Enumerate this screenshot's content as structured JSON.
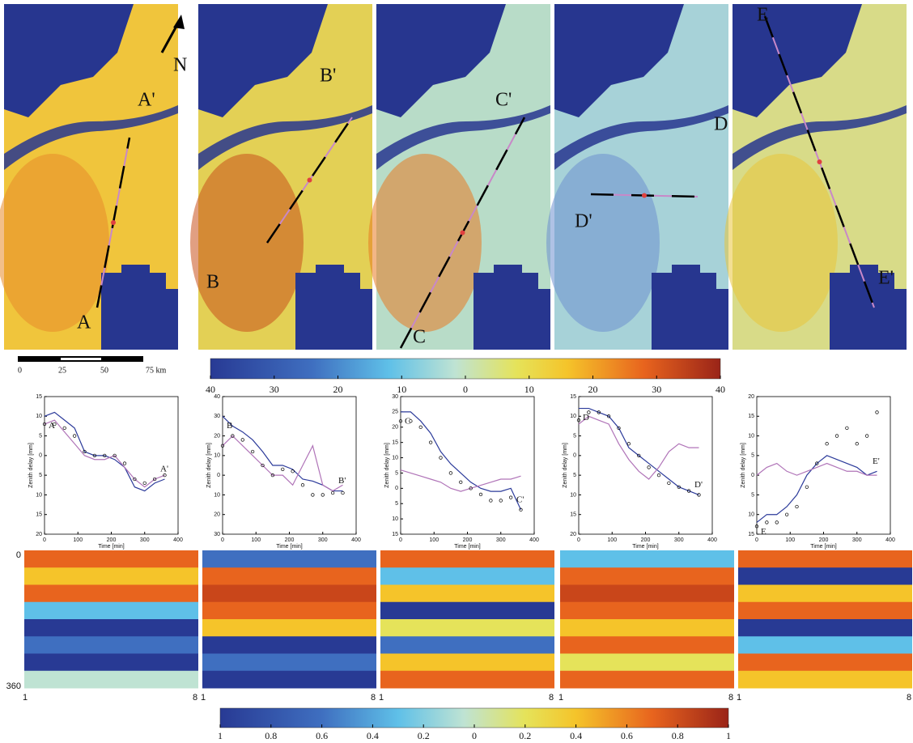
{
  "map_panels": [
    {
      "start": "A",
      "end": "A'"
    },
    {
      "start": "B",
      "end": "B'"
    },
    {
      "start": "C",
      "end": "C'"
    },
    {
      "start": "D",
      "end": "D'"
    },
    {
      "start": "E",
      "end": "E'"
    }
  ],
  "north": "N",
  "scale_bar": {
    "labels": [
      "0",
      "25",
      "50",
      "75 km"
    ]
  },
  "colorbars": [
    {
      "lim": [
        -40,
        40
      ],
      "ticks": [
        {
          "value": -40,
          "label": "40"
        },
        {
          "value": -30,
          "label": "30"
        },
        {
          "value": -20,
          "label": "20"
        },
        {
          "value": -10,
          "label": "10"
        },
        0,
        10,
        20,
        30,
        40
      ]
    },
    {
      "lim": [
        -1,
        1
      ],
      "ticks": [
        {
          "value": -1,
          "label": "1"
        },
        {
          "value": -0.8,
          "label": "0.8"
        },
        {
          "value": -0.6,
          "label": "0.6"
        },
        {
          "value": -0.4,
          "label": "0.4"
        },
        {
          "value": -0.2,
          "label": "0.2"
        },
        0,
        0.2,
        0.4,
        0.6,
        0.8,
        1
      ]
    }
  ],
  "chart_data": [
    {
      "type": "line",
      "xlabel": "Time [min]",
      "ylabel": "Zenith delay [mm]",
      "start_label": "A",
      "end_label": "A'",
      "x": [
        0,
        30,
        60,
        90,
        120,
        150,
        180,
        210,
        240,
        270,
        300,
        330,
        360
      ],
      "xlim": [
        0,
        400
      ],
      "xticks": [
        0,
        100,
        200,
        300,
        400
      ],
      "ylim": [
        -20,
        15
      ],
      "yticks": [
        15,
        10,
        5,
        0,
        {
          "value": -5,
          "label": "5"
        },
        {
          "value": -10,
          "label": "10"
        },
        {
          "value": -15,
          "label": "15"
        },
        {
          "value": -20,
          "label": "20"
        }
      ],
      "series": [
        {
          "color": "#2b3a9a",
          "values": [
            10,
            11,
            9,
            7,
            1,
            0,
            0,
            -1,
            -3,
            -8,
            -9,
            -7,
            -6
          ]
        },
        {
          "color": "#b074b8",
          "values": [
            8,
            9,
            6,
            3,
            0,
            -1,
            -1,
            0,
            -3,
            -6,
            -8,
            -6,
            -5
          ]
        },
        {
          "color": "#000000",
          "values": [
            8,
            8,
            7,
            5,
            1,
            0,
            0,
            0,
            -2,
            -6,
            -7,
            -6,
            -5
          ]
        }
      ]
    },
    {
      "type": "line",
      "xlabel": "Time [min]",
      "ylabel": "Zenith delay [mm]",
      "start_label": "B",
      "end_label": "B'",
      "x": [
        0,
        30,
        60,
        90,
        120,
        150,
        180,
        210,
        240,
        270,
        300,
        330,
        360
      ],
      "xlim": [
        0,
        400
      ],
      "xticks": [
        0,
        100,
        200,
        300,
        400
      ],
      "ylim": [
        -30,
        40
      ],
      "yticks": [
        40,
        30,
        20,
        10,
        0,
        {
          "value": -10,
          "label": "10"
        },
        {
          "value": -20,
          "label": "20"
        },
        {
          "value": -30,
          "label": "30"
        }
      ],
      "series": [
        {
          "color": "#2b3a9a",
          "values": [
            30,
            25,
            22,
            18,
            12,
            5,
            5,
            3,
            -2,
            -3,
            -5,
            -8,
            -8
          ]
        },
        {
          "color": "#b074b8",
          "values": [
            15,
            20,
            15,
            10,
            5,
            0,
            0,
            -5,
            5,
            15,
            -5,
            -8,
            -5
          ]
        },
        {
          "color": "#000000",
          "values": [
            15,
            20,
            18,
            12,
            5,
            0,
            3,
            2,
            -5,
            -10,
            -10,
            -9,
            -9
          ]
        }
      ]
    },
    {
      "type": "line",
      "xlabel": "Time [min]",
      "ylabel": "Zenith delay [mm]",
      "start_label": "C",
      "end_label": "C'",
      "x": [
        0,
        30,
        60,
        90,
        120,
        150,
        180,
        210,
        240,
        270,
        300,
        330,
        360
      ],
      "xlim": [
        0,
        400
      ],
      "xticks": [
        0,
        100,
        200,
        300,
        400
      ],
      "ylim": [
        -15,
        30
      ],
      "yticks": [
        30,
        25,
        20,
        15,
        10,
        5,
        0,
        {
          "value": -5,
          "label": "5"
        },
        {
          "value": -10,
          "label": "10"
        },
        {
          "value": -15,
          "label": "15"
        }
      ],
      "series": [
        {
          "color": "#2b3a9a",
          "values": [
            25,
            25,
            22,
            18,
            12,
            8,
            5,
            2,
            0,
            -1,
            -1,
            0,
            -7
          ]
        },
        {
          "color": "#b074b8",
          "values": [
            6,
            5,
            4,
            3,
            2,
            0,
            -1,
            0,
            1,
            2,
            3,
            3,
            4
          ]
        },
        {
          "color": "#000000",
          "values": [
            22,
            22,
            20,
            15,
            10,
            5,
            2,
            0,
            -2,
            -4,
            -4,
            -3,
            -7
          ]
        }
      ]
    },
    {
      "type": "line",
      "xlabel": "Time [min]",
      "ylabel": "Zenith delay [mm]",
      "start_label": "D",
      "end_label": "D'",
      "x": [
        0,
        30,
        60,
        90,
        120,
        150,
        180,
        210,
        240,
        270,
        300,
        330,
        360
      ],
      "xlim": [
        0,
        400
      ],
      "xticks": [
        0,
        100,
        200,
        300,
        400
      ],
      "ylim": [
        -20,
        15
      ],
      "yticks": [
        15,
        10,
        5,
        0,
        {
          "value": -5,
          "label": "5"
        },
        {
          "value": -10,
          "label": "10"
        },
        {
          "value": -15,
          "label": "15"
        },
        {
          "value": -20,
          "label": "20"
        }
      ],
      "series": [
        {
          "color": "#2b3a9a",
          "values": [
            12,
            12,
            11,
            10,
            7,
            2,
            0,
            -2,
            -4,
            -6,
            -8,
            -9,
            -10
          ]
        },
        {
          "color": "#b074b8",
          "values": [
            8,
            10,
            9,
            8,
            3,
            -1,
            -4,
            -6,
            -3,
            1,
            3,
            2,
            2
          ]
        },
        {
          "color": "#000000",
          "values": [
            9,
            11,
            11,
            10,
            7,
            3,
            0,
            -3,
            -5,
            -7,
            -8,
            -9,
            -10
          ]
        }
      ]
    },
    {
      "type": "line",
      "xlabel": "Time [min]",
      "ylabel": "Zenith delay [mm]",
      "start_label": "E",
      "end_label": "E'",
      "x": [
        0,
        30,
        60,
        90,
        120,
        150,
        180,
        210,
        240,
        270,
        300,
        330,
        360
      ],
      "xlim": [
        0,
        400
      ],
      "xticks": [
        0,
        100,
        200,
        300,
        400
      ],
      "ylim": [
        -15,
        20
      ],
      "yticks": [
        20,
        15,
        10,
        5,
        0,
        {
          "value": -5,
          "label": "5"
        },
        {
          "value": -10,
          "label": "10"
        },
        {
          "value": -15,
          "label": "15"
        }
      ],
      "series": [
        {
          "color": "#2b3a9a",
          "values": [
            -12,
            -10,
            -10,
            -8,
            -5,
            0,
            3,
            5,
            4,
            3,
            2,
            0,
            1
          ]
        },
        {
          "color": "#b074b8",
          "values": [
            0,
            2,
            3,
            1,
            0,
            1,
            2,
            3,
            2,
            1,
            1,
            0,
            0
          ]
        },
        {
          "color": "#000000",
          "values": [
            -13,
            -12,
            -12,
            -10,
            -8,
            -3,
            3,
            8,
            10,
            12,
            8,
            10,
            16
          ]
        }
      ]
    }
  ],
  "time_panels": {
    "y_top": "0",
    "y_bottom": "360",
    "x_labels": [
      {
        "start": "1",
        "end": "8"
      },
      {
        "start": "1",
        "end": "8"
      },
      {
        "start": "1",
        "end": "8"
      },
      {
        "start": "1",
        "end": "8"
      },
      {
        "start": "1",
        "end": "8"
      }
    ]
  }
}
